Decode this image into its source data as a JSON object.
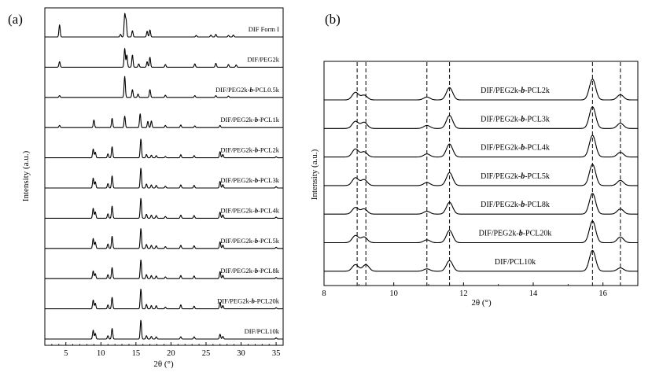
{
  "chart_data": [
    {
      "panel": "(a)",
      "type": "line",
      "xlabel": "2θ (°)",
      "ylabel": "Intensity (a.u.)",
      "xlim": [
        2,
        36
      ],
      "xticks": [
        5,
        10,
        15,
        20,
        25,
        30,
        35
      ],
      "grid": false,
      "series": [
        {
          "name": "DIF Form I",
          "peaks": [
            [
              4.1,
              0.55
            ],
            [
              12.8,
              0.12
            ],
            [
              13.4,
              1.0
            ],
            [
              13.6,
              0.72
            ],
            [
              14.5,
              0.28
            ],
            [
              16.6,
              0.26
            ],
            [
              17.0,
              0.32
            ],
            [
              23.6,
              0.07
            ],
            [
              25.7,
              0.09
            ],
            [
              26.4,
              0.12
            ],
            [
              28.2,
              0.07
            ],
            [
              28.9,
              0.09
            ]
          ]
        },
        {
          "name": "DIF/PEG2k",
          "peaks": [
            [
              4.1,
              0.25
            ],
            [
              13.4,
              0.85
            ],
            [
              13.7,
              0.55
            ],
            [
              14.5,
              0.55
            ],
            [
              15.4,
              0.15
            ],
            [
              16.6,
              0.25
            ],
            [
              17.0,
              0.45
            ],
            [
              19.2,
              0.12
            ],
            [
              23.4,
              0.15
            ],
            [
              26.4,
              0.18
            ],
            [
              28.2,
              0.12
            ],
            [
              29.3,
              0.1
            ]
          ]
        },
        {
          "name": "DIF/PEG2k-b-PCL0.5k",
          "peaks": [
            [
              4.1,
              0.08
            ],
            [
              13.4,
              0.95
            ],
            [
              14.5,
              0.35
            ],
            [
              15.3,
              0.15
            ],
            [
              17.0,
              0.35
            ],
            [
              19.2,
              0.1
            ],
            [
              23.4,
              0.08
            ],
            [
              26.4,
              0.08
            ],
            [
              28.2,
              0.06
            ]
          ]
        },
        {
          "name": "DIF/PEG2k-b-PCL1k",
          "peaks": [
            [
              4.1,
              0.1
            ],
            [
              9.0,
              0.35
            ],
            [
              11.6,
              0.42
            ],
            [
              13.4,
              0.52
            ],
            [
              15.6,
              0.62
            ],
            [
              16.7,
              0.28
            ],
            [
              17.2,
              0.3
            ],
            [
              19.2,
              0.1
            ],
            [
              21.4,
              0.12
            ],
            [
              23.4,
              0.08
            ],
            [
              27.0,
              0.1
            ]
          ]
        },
        {
          "name": "DIF/PEG2k-b-PCL2k",
          "peaks": [
            [
              8.9,
              0.4
            ],
            [
              9.2,
              0.25
            ],
            [
              11.0,
              0.18
            ],
            [
              11.6,
              0.5
            ],
            [
              15.7,
              0.85
            ],
            [
              16.5,
              0.15
            ],
            [
              17.2,
              0.12
            ],
            [
              17.9,
              0.1
            ],
            [
              19.2,
              0.06
            ],
            [
              21.4,
              0.14
            ],
            [
              23.3,
              0.1
            ],
            [
              27.0,
              0.28
            ],
            [
              27.4,
              0.15
            ],
            [
              35.0,
              0.05
            ]
          ]
        },
        {
          "name": "DIF/PEG2k-b-PCL3k",
          "peaks": [
            [
              8.9,
              0.45
            ],
            [
              9.2,
              0.28
            ],
            [
              11.0,
              0.2
            ],
            [
              11.6,
              0.55
            ],
            [
              15.7,
              0.9
            ],
            [
              16.5,
              0.18
            ],
            [
              17.2,
              0.14
            ],
            [
              17.9,
              0.12
            ],
            [
              19.2,
              0.08
            ],
            [
              21.4,
              0.14
            ],
            [
              23.3,
              0.12
            ],
            [
              27.0,
              0.3
            ],
            [
              27.4,
              0.15
            ],
            [
              35.0,
              0.06
            ]
          ]
        },
        {
          "name": "DIF/PEG2k-b-PCL4k",
          "peaks": [
            [
              8.9,
              0.45
            ],
            [
              9.2,
              0.28
            ],
            [
              11.0,
              0.2
            ],
            [
              11.6,
              0.55
            ],
            [
              15.7,
              0.9
            ],
            [
              16.5,
              0.18
            ],
            [
              17.2,
              0.14
            ],
            [
              17.9,
              0.12
            ],
            [
              19.2,
              0.08
            ],
            [
              21.4,
              0.14
            ],
            [
              23.3,
              0.12
            ],
            [
              27.0,
              0.28
            ],
            [
              27.4,
              0.15
            ],
            [
              35.0,
              0.05
            ]
          ]
        },
        {
          "name": "DIF/PEG2k-b-PCL5k",
          "peaks": [
            [
              8.9,
              0.45
            ],
            [
              9.2,
              0.28
            ],
            [
              11.0,
              0.2
            ],
            [
              11.6,
              0.55
            ],
            [
              15.7,
              0.9
            ],
            [
              16.5,
              0.18
            ],
            [
              17.2,
              0.14
            ],
            [
              17.9,
              0.12
            ],
            [
              19.2,
              0.08
            ],
            [
              21.4,
              0.14
            ],
            [
              23.3,
              0.12
            ],
            [
              27.0,
              0.3
            ],
            [
              27.4,
              0.15
            ],
            [
              35.0,
              0.05
            ]
          ]
        },
        {
          "name": "DIF/PEG2k-b-PCL8k",
          "peaks": [
            [
              8.9,
              0.35
            ],
            [
              9.2,
              0.22
            ],
            [
              11.0,
              0.18
            ],
            [
              11.6,
              0.5
            ],
            [
              15.7,
              0.85
            ],
            [
              16.5,
              0.18
            ],
            [
              17.2,
              0.14
            ],
            [
              17.9,
              0.12
            ],
            [
              19.2,
              0.08
            ],
            [
              21.4,
              0.14
            ],
            [
              23.3,
              0.12
            ],
            [
              27.0,
              0.32
            ],
            [
              27.4,
              0.15
            ],
            [
              35.0,
              0.05
            ]
          ]
        },
        {
          "name": "DIF/PEG2k-b-PCL20k",
          "peaks": [
            [
              8.9,
              0.4
            ],
            [
              9.2,
              0.25
            ],
            [
              11.0,
              0.18
            ],
            [
              11.6,
              0.52
            ],
            [
              15.7,
              0.9
            ],
            [
              16.5,
              0.2
            ],
            [
              17.2,
              0.15
            ],
            [
              17.9,
              0.14
            ],
            [
              19.2,
              0.08
            ],
            [
              21.4,
              0.18
            ],
            [
              23.3,
              0.12
            ],
            [
              27.0,
              0.3
            ],
            [
              27.4,
              0.15
            ],
            [
              35.0,
              0.05
            ]
          ]
        },
        {
          "name": "DIF/PCL10k",
          "peaks": [
            [
              8.9,
              0.4
            ],
            [
              9.2,
              0.25
            ],
            [
              11.0,
              0.15
            ],
            [
              11.6,
              0.48
            ],
            [
              15.7,
              0.85
            ],
            [
              16.5,
              0.15
            ],
            [
              17.2,
              0.12
            ],
            [
              17.9,
              0.1
            ],
            [
              21.4,
              0.1
            ],
            [
              23.3,
              0.1
            ],
            [
              27.0,
              0.22
            ],
            [
              27.4,
              0.12
            ],
            [
              35.0,
              0.05
            ]
          ]
        }
      ]
    },
    {
      "panel": "(b)",
      "type": "line",
      "xlabel": "2θ (°)",
      "ylabel": "Intensity (a.u.)",
      "xlim": [
        8,
        17
      ],
      "xticks": [
        8,
        10,
        12,
        14,
        16
      ],
      "grid": false,
      "reference_lines": [
        8.95,
        9.2,
        10.95,
        11.6,
        15.7,
        16.5
      ],
      "series": [
        {
          "name": "DIF/PEG2k-b-PCL2k",
          "peaks": [
            [
              8.9,
              0.32
            ],
            [
              9.15,
              0.2
            ],
            [
              10.95,
              0.12
            ],
            [
              11.6,
              0.52
            ],
            [
              15.7,
              0.88
            ],
            [
              16.5,
              0.22
            ]
          ]
        },
        {
          "name": "DIF/PEG2k-b-PCL3k",
          "peaks": [
            [
              8.9,
              0.3
            ],
            [
              9.15,
              0.26
            ],
            [
              10.95,
              0.13
            ],
            [
              11.6,
              0.55
            ],
            [
              15.7,
              0.92
            ],
            [
              16.5,
              0.22
            ]
          ]
        },
        {
          "name": "DIF/PEG2k-b-PCL4k",
          "peaks": [
            [
              8.9,
              0.34
            ],
            [
              9.15,
              0.22
            ],
            [
              10.95,
              0.13
            ],
            [
              11.6,
              0.55
            ],
            [
              15.7,
              0.92
            ],
            [
              16.5,
              0.2
            ]
          ]
        },
        {
          "name": "DIF/PEG2k-b-PCL5k",
          "peaks": [
            [
              8.9,
              0.33
            ],
            [
              9.15,
              0.25
            ],
            [
              10.95,
              0.13
            ],
            [
              11.6,
              0.55
            ],
            [
              15.7,
              0.9
            ],
            [
              16.5,
              0.22
            ]
          ]
        },
        {
          "name": "DIF/PEG2k-b-PCL8k",
          "peaks": [
            [
              8.9,
              0.28
            ],
            [
              9.15,
              0.22
            ],
            [
              10.95,
              0.12
            ],
            [
              11.6,
              0.5
            ],
            [
              15.7,
              0.88
            ],
            [
              16.5,
              0.22
            ]
          ]
        },
        {
          "name": "DIF/PEG2k-b-PCL20k",
          "peaks": [
            [
              8.9,
              0.3
            ],
            [
              9.15,
              0.24
            ],
            [
              10.95,
              0.12
            ],
            [
              11.6,
              0.52
            ],
            [
              15.7,
              0.92
            ],
            [
              16.5,
              0.24
            ]
          ]
        },
        {
          "name": "DIF/PCL10k",
          "peaks": [
            [
              8.9,
              0.28
            ],
            [
              9.2,
              0.28
            ],
            [
              10.95,
              0.1
            ],
            [
              11.6,
              0.45
            ],
            [
              15.7,
              0.88
            ],
            [
              16.5,
              0.14
            ]
          ]
        }
      ]
    }
  ]
}
